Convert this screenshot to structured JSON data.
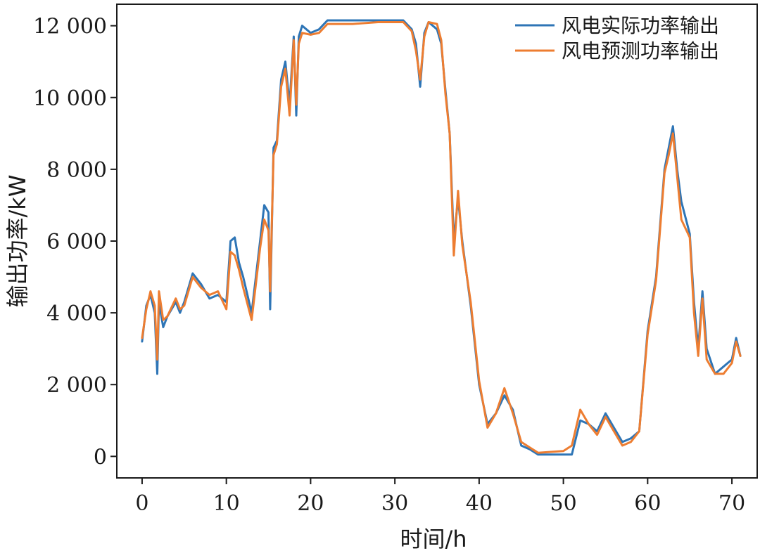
{
  "chart_data": {
    "type": "line",
    "xlabel": "时间/h",
    "ylabel": "输出功率/kW",
    "xlim": [
      -3,
      73
    ],
    "ylim": [
      -600,
      12600
    ],
    "xticks": [
      0,
      10,
      20,
      30,
      40,
      50,
      60,
      70
    ],
    "xtick_labels": [
      "0",
      "10",
      "20",
      "30",
      "40",
      "50",
      "60",
      "70"
    ],
    "yticks": [
      0,
      2000,
      4000,
      6000,
      8000,
      10000,
      12000
    ],
    "ytick_labels": [
      "0",
      "2 000",
      "4 000",
      "6 000",
      "8 000",
      "10 000",
      "12 000"
    ],
    "legend_position": "top-right",
    "grid": false,
    "series": [
      {
        "name": "风电实际功率输出",
        "color": "#2e75b6",
        "x": [
          0,
          0.5,
          1,
          1.5,
          1.8,
          2,
          2.5,
          3,
          4,
          4.5,
          5,
          6,
          7,
          8,
          9,
          10,
          10.5,
          11,
          11.5,
          12,
          13,
          14,
          14.5,
          15,
          15.2,
          15.6,
          16,
          16.5,
          17,
          17.5,
          18,
          18.3,
          18.6,
          19,
          20,
          21,
          22,
          25,
          28,
          31,
          32,
          32.5,
          33,
          33.5,
          34,
          35,
          35.5,
          36,
          36.5,
          37,
          37.5,
          38,
          39,
          40,
          41,
          42,
          43,
          44,
          45,
          46,
          47,
          50,
          51,
          52,
          53,
          54,
          55,
          56,
          57,
          58,
          59,
          60,
          61,
          62,
          62.5,
          63,
          63.5,
          64,
          65,
          65.5,
          66,
          66.5,
          67,
          68,
          69,
          70,
          70.5,
          71
        ],
        "y": [
          3200,
          4200,
          4500,
          4000,
          2300,
          4300,
          3600,
          3900,
          4300,
          4000,
          4300,
          5100,
          4800,
          4400,
          4500,
          4300,
          6000,
          6100,
          5400,
          5000,
          4000,
          6000,
          7000,
          6800,
          4100,
          8600,
          8800,
          10500,
          11000,
          9800,
          11700,
          9500,
          11700,
          12000,
          11800,
          11900,
          12150,
          12150,
          12150,
          12150,
          11900,
          11500,
          10300,
          11800,
          12100,
          11900,
          11500,
          10200,
          9000,
          6000,
          7200,
          6000,
          4200,
          2000,
          900,
          1200,
          1700,
          1300,
          300,
          200,
          50,
          50,
          50,
          1000,
          900,
          700,
          1200,
          800,
          400,
          500,
          700,
          3500,
          5000,
          8000,
          8600,
          9200,
          8000,
          7100,
          6200,
          4300,
          3000,
          4600,
          3000,
          2300,
          2500,
          2700,
          3300,
          2800
        ],
        "names": {}
      },
      {
        "name": "风电预测功率输出",
        "color": "#ed7d31",
        "x": [
          0,
          0.5,
          1,
          1.5,
          1.8,
          2,
          2.5,
          3,
          4,
          4.5,
          5,
          6,
          7,
          8,
          9,
          10,
          10.5,
          11,
          11.5,
          12,
          13,
          14,
          14.5,
          15,
          15.2,
          15.6,
          16,
          16.5,
          17,
          17.5,
          18,
          18.3,
          18.6,
          19,
          20,
          21,
          22,
          25,
          28,
          31,
          32,
          32.5,
          33,
          33.5,
          34,
          35,
          35.5,
          36,
          36.5,
          37,
          37.5,
          38,
          39,
          40,
          41,
          42,
          43,
          44,
          45,
          46,
          47,
          50,
          51,
          52,
          53,
          54,
          55,
          56,
          57,
          58,
          59,
          60,
          61,
          62,
          62.5,
          63,
          63.5,
          64,
          65,
          65.5,
          66,
          66.5,
          67,
          68,
          69,
          70,
          70.5,
          71
        ],
        "y": [
          3300,
          4100,
          4600,
          4200,
          2700,
          4600,
          3800,
          3900,
          4400,
          4100,
          4200,
          5000,
          4700,
          4500,
          4600,
          4100,
          5700,
          5600,
          5200,
          4700,
          3800,
          5800,
          6600,
          6300,
          4600,
          8400,
          8700,
          10300,
          10800,
          9500,
          11600,
          9800,
          11500,
          11800,
          11750,
          11800,
          12050,
          12050,
          12100,
          12100,
          11850,
          11300,
          10500,
          11700,
          12100,
          12050,
          11600,
          10100,
          9000,
          5600,
          7400,
          5900,
          4300,
          2100,
          800,
          1200,
          1900,
          1200,
          400,
          250,
          100,
          150,
          300,
          1300,
          900,
          600,
          1100,
          700,
          300,
          400,
          700,
          3400,
          4900,
          7900,
          8400,
          9000,
          7800,
          6600,
          6100,
          4000,
          2800,
          4400,
          2700,
          2300,
          2300,
          2600,
          3200,
          2800
        ],
        "names": {}
      }
    ]
  }
}
